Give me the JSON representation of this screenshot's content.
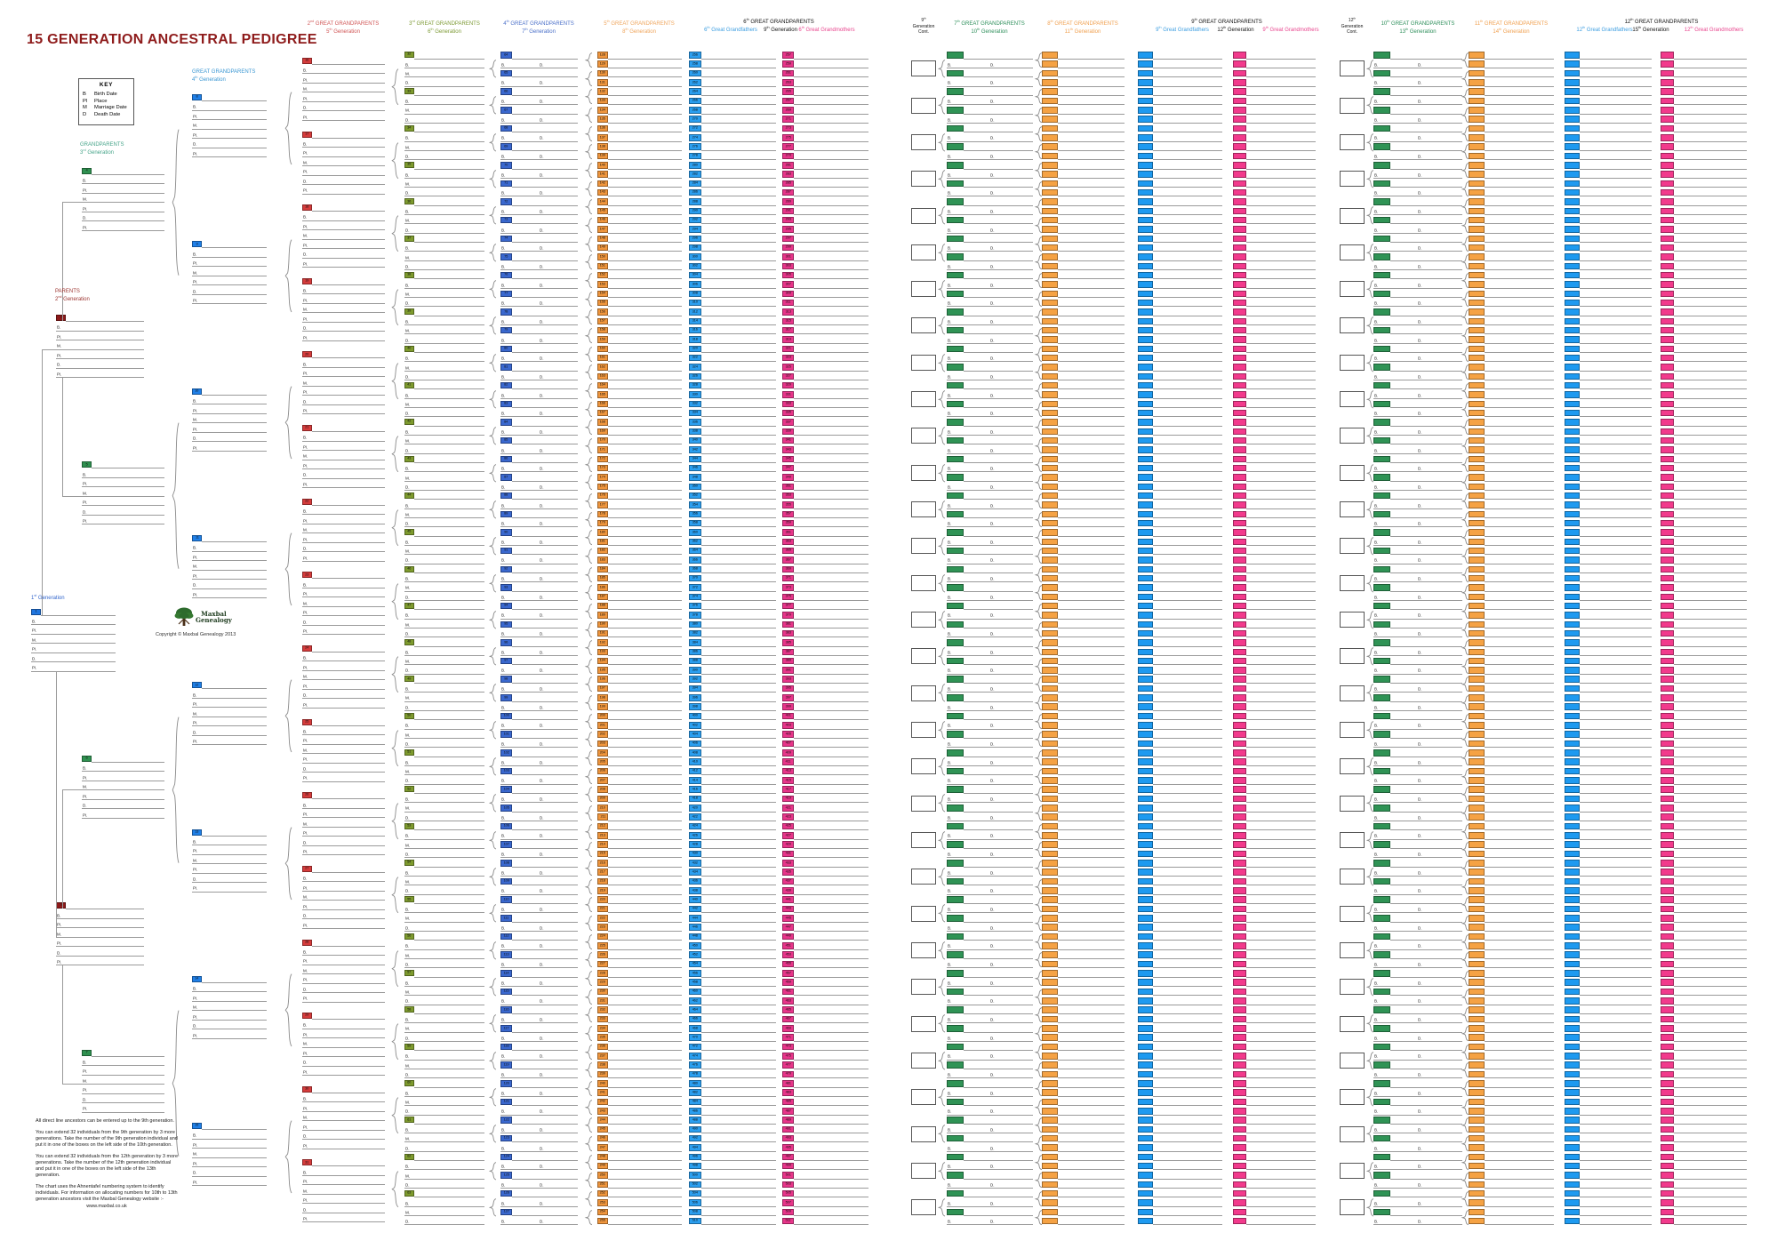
{
  "title": "15 GENERATION ANCESTRAL PEDIGREE",
  "key": {
    "title": "KEY",
    "rows": [
      {
        "abbr": "B",
        "label": "Birth Date"
      },
      {
        "abbr": "Pl",
        "label": "Place"
      },
      {
        "abbr": "M",
        "label": "Marriage Date"
      },
      {
        "abbr": "D",
        "label": "Death Date"
      }
    ]
  },
  "fields7": [
    "B.",
    "Pl.",
    "M.",
    "Pl.",
    "D.",
    "Pl."
  ],
  "fields4": [
    "B.",
    "M.",
    "D."
  ],
  "fields2": [
    "B.",
    "D."
  ],
  "generations": [
    {
      "id": "gen1",
      "label": "1st Generation",
      "color": "#3366cc",
      "box_color": "#1f76e0",
      "start": 1,
      "count": 1
    },
    {
      "id": "gen2",
      "header": "PARENTS",
      "sub": "2nd Generation",
      "color": "#9c3430",
      "box_color": "#8e1a1a",
      "start": 2,
      "count": 2
    },
    {
      "id": "gen3",
      "header": "GRANDPARENTS",
      "sub": "3rd Generation",
      "color": "#46a489",
      "box_color": "#2f9150",
      "start": 4,
      "count": 4
    },
    {
      "id": "gen4",
      "header": "GREAT GRANDPARENTS",
      "sub": "4th Generation",
      "color": "#3b97d3",
      "box_color": "#2080e8",
      "start": 8,
      "count": 8
    },
    {
      "id": "gen5",
      "header": "2nd GREAT GRANDPARENTS",
      "sub": "5th Generation",
      "color": "#d05555",
      "box_color": "#d63c3c",
      "start": 16,
      "count": 16
    },
    {
      "id": "gen6",
      "header": "3rd GREAT GRANDPARENTS",
      "sub": "6th Generation",
      "color": "#7d9a35",
      "box_color": "#7e9b2e",
      "start": 32,
      "count": 32
    },
    {
      "id": "gen7",
      "header": "4th GREAT GRANDPARENTS",
      "sub": "7th Generation",
      "color": "#4a6fc8",
      "box_color": "#3a68cf",
      "start": 64,
      "count": 64
    },
    {
      "id": "gen8",
      "header": "5th GREAT GRANDPARENTS",
      "sub": "8th Generation",
      "color": "#efa55c",
      "box_color": "#f0963d",
      "start": 128,
      "count": 128
    },
    {
      "id": "gen9",
      "header": "6th GREAT GRANDPARENTS",
      "sub": "9th Generation",
      "father_label": "6th Great Grandfathers",
      "mother_label": "6th Great Grandmothers",
      "father_color": "#3b9de0",
      "mother_color": "#e8458e",
      "father_box": "#2b9ff0",
      "mother_box": "#e8358a",
      "start": 256,
      "count": 256
    },
    {
      "id": "gen9cont",
      "lines": [
        "9th",
        "Generation",
        "Cont."
      ],
      "count": 32
    },
    {
      "id": "gen10",
      "header": "7th GREAT GRANDPARENTS",
      "sub": "10th Generation",
      "color": "#2e8f5b",
      "box_color": "#2f9355",
      "count": 64
    },
    {
      "id": "gen11",
      "header": "8th GREAT GRANDPARENTS",
      "sub": "11th Generation",
      "color": "#f0a050",
      "box_color": "#f5a244",
      "count": 128
    },
    {
      "id": "gen12",
      "header": "9th GREAT GRANDPARENTS",
      "sub": "12th Generation",
      "father_label": "9th Great Grandfathers",
      "mother_label": "9th Great Grandmothers",
      "father_color": "#3b9de0",
      "mother_color": "#e8458e",
      "father_box": "#1e9af0",
      "mother_box": "#f23a8c",
      "count": 256
    },
    {
      "id": "gen12cont",
      "lines": [
        "12th",
        "Generation",
        "Cont."
      ],
      "count": 32
    },
    {
      "id": "gen13",
      "header": "10th GREAT GRANDPARENTS",
      "sub": "13th Generation",
      "color": "#2e8f5b",
      "box_color": "#2f9355",
      "count": 64
    },
    {
      "id": "gen14",
      "header": "11th GREAT GRANDPARENTS",
      "sub": "14th Generation",
      "color": "#f0a050",
      "box_color": "#f5a244",
      "count": 128
    },
    {
      "id": "gen15",
      "header": "12th GREAT GRANDPARENTS",
      "sub": "15th Generation",
      "father_label": "12th Great Grandfathers",
      "mother_label": "12th Great Grandmothers",
      "father_color": "#3b9de0",
      "mother_color": "#e8458e",
      "father_box": "#1e9af0",
      "mother_box": "#f23a8c",
      "count": 256
    }
  ],
  "logo": {
    "name_line1": "Maxbal",
    "name_line2": "Genealogy",
    "copyright": "Copyright © Maxbal Genealogy 2013"
  },
  "footnotes": {
    "paragraphs": [
      "All direct line ancestors can be entered up to the 9th generation.",
      "You can extend 32 individuals from the 9th generation by 3 more generations. Take the number of the 9th generation individual and put it in one of the boxes on the left side of the 10th generation.",
      "You can extend 32 individuals from the 12th generation by 3 more generations. Take the number of the 12th generation individual and put it in one of the boxes on the left side of the 13th generation.",
      "The chart uses the Ahnentafel numbering system to identify individuals. For information on allocating numbers for 10th to 13th generation ancestors visit the Maxbal Genealogy website :-"
    ],
    "website": "www.maxbal.co.uk"
  }
}
